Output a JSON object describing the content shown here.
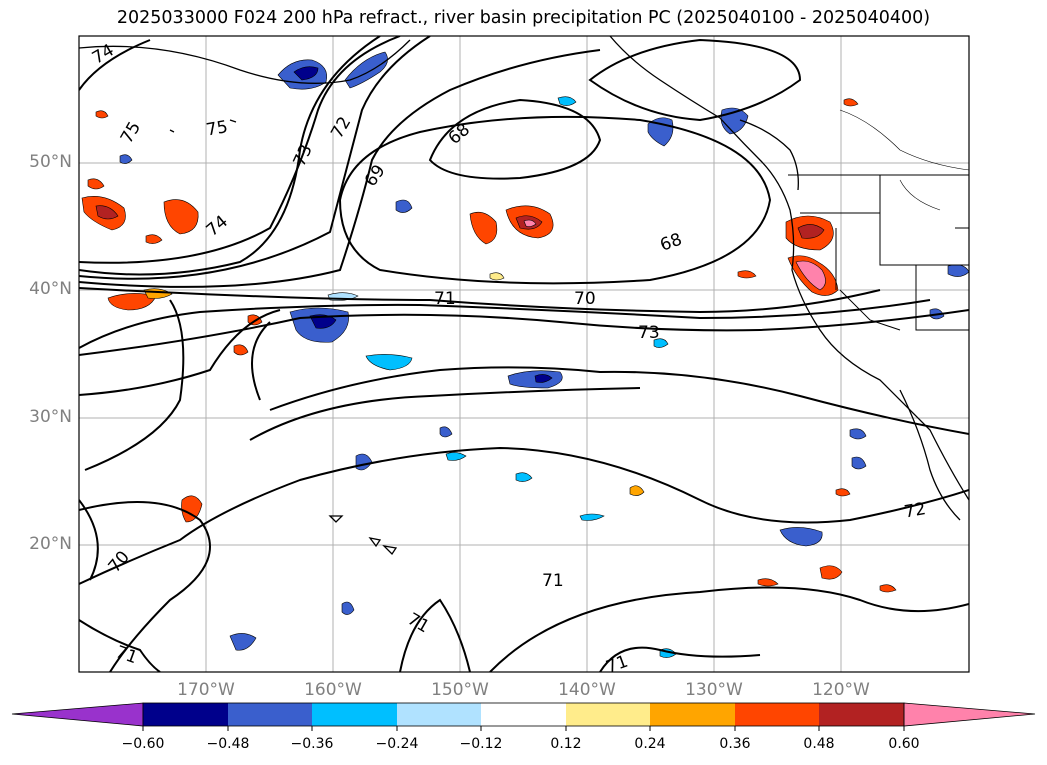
{
  "title": "2025033000 F024 200 hPa refract., river basin precipitation PC (2025040100 - 2025040400)",
  "map": {
    "projection": "plate-carree",
    "lon_range": [
      -180,
      -110
    ],
    "lat_range": [
      10,
      60
    ],
    "gridlines": true,
    "lat_labels": [
      "50°N",
      "40°N",
      "30°N",
      "20°N"
    ],
    "lat_values": [
      50,
      40,
      30,
      20
    ],
    "lon_labels": [
      "170°W",
      "160°W",
      "150°W",
      "140°W",
      "130°W",
      "120°W"
    ],
    "lon_values": [
      -170,
      -160,
      -150,
      -140,
      -130,
      -120
    ],
    "contour_labels": [
      "74",
      "75",
      "75",
      "74",
      "73",
      "72",
      "69",
      "68",
      "68",
      "71",
      "70",
      "73",
      "72",
      "71",
      "71",
      "70",
      "71",
      "71"
    ],
    "contour_color": "#000000",
    "filled_field": "river basin precipitation PC",
    "contour_field": "200 hPa refractivity"
  },
  "colorbar": {
    "extend": "both",
    "ticks": [
      "−0.60",
      "−0.48",
      "−0.36",
      "−0.24",
      "−0.12",
      "0.12",
      "0.24",
      "0.36",
      "0.48",
      "0.60"
    ],
    "colors": [
      "#9932cc",
      "#00008b",
      "#3a5fcd",
      "#00bfff",
      "#b0e2ff",
      "#ffffff",
      "#ffec8b",
      "#ffa500",
      "#ff4500",
      "#b22222",
      "#ff82ab"
    ]
  }
}
